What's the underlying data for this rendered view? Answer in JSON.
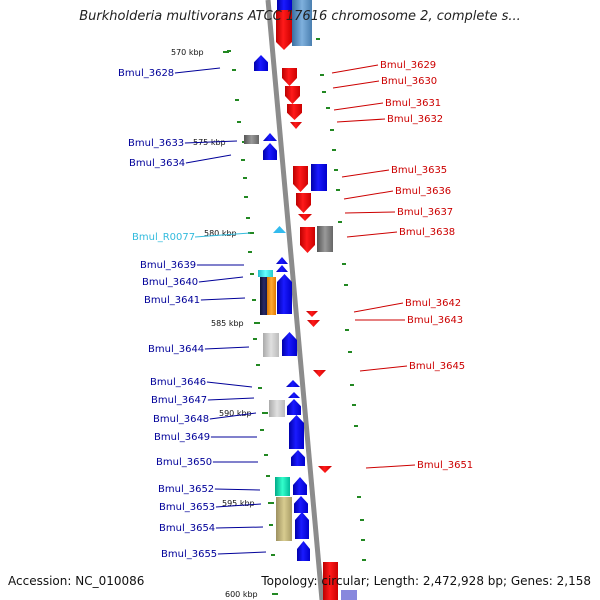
{
  "title": "Burkholderia multivorans ATCC 17616 chromosome 2, complete s...",
  "footer": {
    "accession": "Accession: NC_010086",
    "topology": "Topology: circular; Length: 2,472,928 bp; Genes: 2,158"
  },
  "colors": {
    "forward_gene": "#0000ee",
    "reverse_gene": "#ee0000",
    "rna_gene": "#33bbee",
    "label_left": "#000099",
    "label_right": "#cc0000",
    "label_rna": "#33bbdd",
    "backbone": "#8c8c8c",
    "tick": "#228822"
  },
  "kbp_labels": [
    "570 kbp",
    "575 kbp",
    "580 kbp",
    "585 kbp",
    "590 kbp",
    "595 kbp",
    "600 kbp"
  ],
  "left_genes": [
    "Bmul_3628",
    "Bmul_3633",
    "Bmul_3634",
    "Bmul_R0077",
    "Bmul_3639",
    "Bmul_3640",
    "Bmul_3641",
    "Bmul_3644",
    "Bmul_3646",
    "Bmul_3647",
    "Bmul_3648",
    "Bmul_3649",
    "Bmul_3650",
    "Bmul_3652",
    "Bmul_3653",
    "Bmul_3654",
    "Bmul_3655"
  ],
  "right_genes": [
    "Bmul_3629",
    "Bmul_3630",
    "Bmul_3631",
    "Bmul_3632",
    "Bmul_3635",
    "Bmul_3636",
    "Bmul_3637",
    "Bmul_3638",
    "Bmul_3642",
    "Bmul_3643",
    "Bmul_3645",
    "Bmul_3651"
  ]
}
